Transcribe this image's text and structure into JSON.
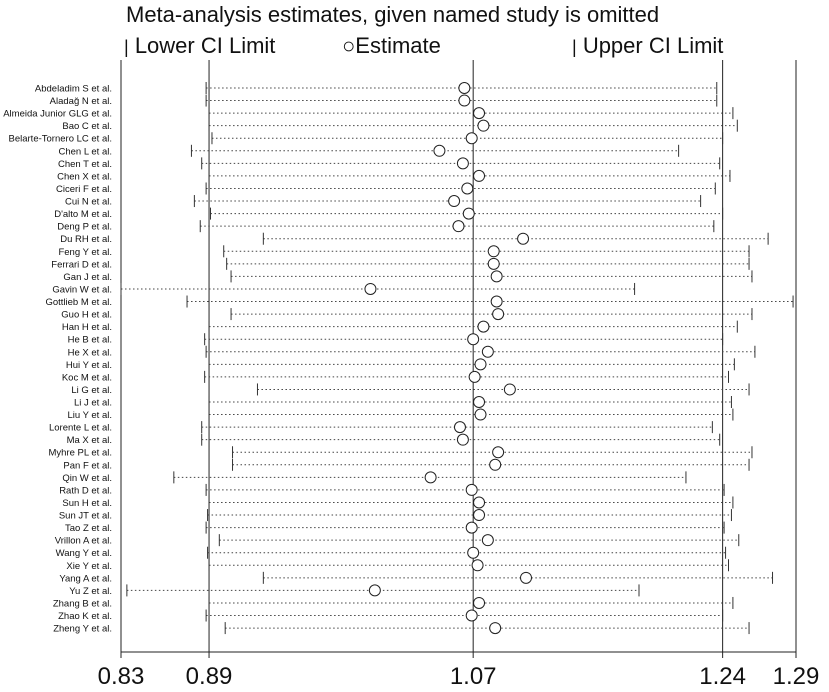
{
  "chart_data": {
    "type": "forest",
    "title": "Meta-analysis estimates, given named study is omitted",
    "legend": {
      "lower": "Lower CI Limit",
      "estimate": "Estimate",
      "upper": "Upper CI Limit"
    },
    "x_ticks": [
      {
        "value": 0.83,
        "label": "0.83"
      },
      {
        "value": 0.89,
        "label": "0.89"
      },
      {
        "value": 1.07,
        "label": "1.07"
      },
      {
        "value": 1.24,
        "label": "1.24"
      },
      {
        "value": 1.29,
        "label": "1.29"
      }
    ],
    "xlim": [
      0.83,
      1.29
    ],
    "studies": [
      {
        "name": "Abdeladim S et al.",
        "lower": 0.888,
        "estimate": 1.064,
        "upper": 1.236
      },
      {
        "name": "Aladağ N et al.",
        "lower": 0.888,
        "estimate": 1.064,
        "upper": 1.236
      },
      {
        "name": "Almeida Junior GLG et al.",
        "lower": 0.89,
        "estimate": 1.074,
        "upper": 1.247
      },
      {
        "name": "Bao C et al.",
        "lower": 0.89,
        "estimate": 1.077,
        "upper": 1.25
      },
      {
        "name": "Belarte-Tornero LC et al.",
        "lower": 0.892,
        "estimate": 1.069,
        "upper": 1.24
      },
      {
        "name": "Chen L et al.",
        "lower": 0.878,
        "estimate": 1.047,
        "upper": 1.21
      },
      {
        "name": "Chen T et al.",
        "lower": 0.885,
        "estimate": 1.063,
        "upper": 1.238
      },
      {
        "name": "Chen X et al.",
        "lower": 0.89,
        "estimate": 1.074,
        "upper": 1.245
      },
      {
        "name": "Ciceri F et al.",
        "lower": 0.888,
        "estimate": 1.066,
        "upper": 1.235
      },
      {
        "name": "Cui N et al.",
        "lower": 0.88,
        "estimate": 1.057,
        "upper": 1.225
      },
      {
        "name": "D'alto M et al.",
        "lower": 0.891,
        "estimate": 1.067,
        "upper": 1.24
      },
      {
        "name": "Deng P et al.",
        "lower": 0.884,
        "estimate": 1.06,
        "upper": 1.234
      },
      {
        "name": "Du RH et al.",
        "lower": 0.927,
        "estimate": 1.104,
        "upper": 1.271
      },
      {
        "name": "Feng Y et al.",
        "lower": 0.9,
        "estimate": 1.084,
        "upper": 1.258
      },
      {
        "name": "Ferrari D et al.",
        "lower": 0.902,
        "estimate": 1.084,
        "upper": 1.258
      },
      {
        "name": "Gan J et al.",
        "lower": 0.905,
        "estimate": 1.086,
        "upper": 1.26
      },
      {
        "name": "Gavin W et al.",
        "lower": 0.83,
        "estimate": 1.0,
        "upper": 1.18
      },
      {
        "name": "Gottlieb M et al.",
        "lower": 0.875,
        "estimate": 1.086,
        "upper": 1.288
      },
      {
        "name": "Guo H et al.",
        "lower": 0.905,
        "estimate": 1.087,
        "upper": 1.26
      },
      {
        "name": "Han H et al.",
        "lower": 0.89,
        "estimate": 1.077,
        "upper": 1.25
      },
      {
        "name": "He B et al.",
        "lower": 0.887,
        "estimate": 1.07,
        "upper": 1.24
      },
      {
        "name": "He X et al.",
        "lower": 0.888,
        "estimate": 1.08,
        "upper": 1.262
      },
      {
        "name": "Hui Y et al.",
        "lower": 0.89,
        "estimate": 1.075,
        "upper": 1.248
      },
      {
        "name": "Koc M et al.",
        "lower": 0.887,
        "estimate": 1.071,
        "upper": 1.244
      },
      {
        "name": "Li G et al.",
        "lower": 0.923,
        "estimate": 1.095,
        "upper": 1.258
      },
      {
        "name": "Li J et al.",
        "lower": 0.89,
        "estimate": 1.074,
        "upper": 1.246
      },
      {
        "name": "Liu Y et al.",
        "lower": 0.89,
        "estimate": 1.075,
        "upper": 1.247
      },
      {
        "name": "Lorente L et al.",
        "lower": 0.885,
        "estimate": 1.061,
        "upper": 1.233
      },
      {
        "name": "Ma X et al.",
        "lower": 0.885,
        "estimate": 1.063,
        "upper": 1.238
      },
      {
        "name": "Myhre PL et al.",
        "lower": 0.906,
        "estimate": 1.087,
        "upper": 1.26
      },
      {
        "name": "Pan F et al.",
        "lower": 0.906,
        "estimate": 1.085,
        "upper": 1.258
      },
      {
        "name": "Qin W et al.",
        "lower": 0.866,
        "estimate": 1.041,
        "upper": 1.215
      },
      {
        "name": "Rath D et al.",
        "lower": 0.888,
        "estimate": 1.069,
        "upper": 1.241
      },
      {
        "name": "Sun H et al.",
        "lower": 0.89,
        "estimate": 1.074,
        "upper": 1.247
      },
      {
        "name": "Sun JT et al.",
        "lower": 0.889,
        "estimate": 1.074,
        "upper": 1.246
      },
      {
        "name": "Tao Z et al.",
        "lower": 0.888,
        "estimate": 1.069,
        "upper": 1.241
      },
      {
        "name": "Vrillon A et al.",
        "lower": 0.897,
        "estimate": 1.08,
        "upper": 1.251
      },
      {
        "name": "Wang Y et al.",
        "lower": 0.889,
        "estimate": 1.07,
        "upper": 1.242
      },
      {
        "name": "Xie Y et al.",
        "lower": 0.89,
        "estimate": 1.073,
        "upper": 1.244
      },
      {
        "name": "Yang A et al.",
        "lower": 0.927,
        "estimate": 1.106,
        "upper": 1.274
      },
      {
        "name": "Yu Z et al.",
        "lower": 0.834,
        "estimate": 1.003,
        "upper": 1.183
      },
      {
        "name": "Zhang B et al.",
        "lower": 0.89,
        "estimate": 1.074,
        "upper": 1.247
      },
      {
        "name": "Zhao K et al.",
        "lower": 0.888,
        "estimate": 1.069,
        "upper": 1.24
      },
      {
        "name": "Zheng Y et al.",
        "lower": 0.901,
        "estimate": 1.085,
        "upper": 1.258
      }
    ]
  }
}
